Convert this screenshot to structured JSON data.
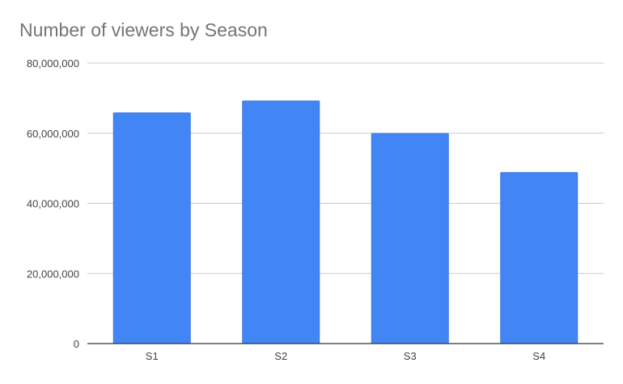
{
  "chart_data": {
    "type": "bar",
    "title": "Number of viewers by Season",
    "categories": [
      "S1",
      "S2",
      "S3",
      "S4"
    ],
    "values": [
      65800000,
      69200000,
      59900000,
      48800000
    ],
    "ylim": [
      0,
      80000000
    ],
    "yticks": [
      0,
      20000000,
      40000000,
      60000000,
      80000000
    ],
    "ytick_labels": [
      "0",
      "20,000,000",
      "40,000,000",
      "60,000,000",
      "80,000,000"
    ],
    "xlabel": "",
    "ylabel": "",
    "grid": true,
    "legend": "none",
    "colors": {
      "bar": "#4285f4",
      "bar_stroke": "#3a78e0",
      "grid": "#cccccc",
      "axis": "#333333",
      "title": "#757575",
      "tick_text": "#444444"
    }
  }
}
